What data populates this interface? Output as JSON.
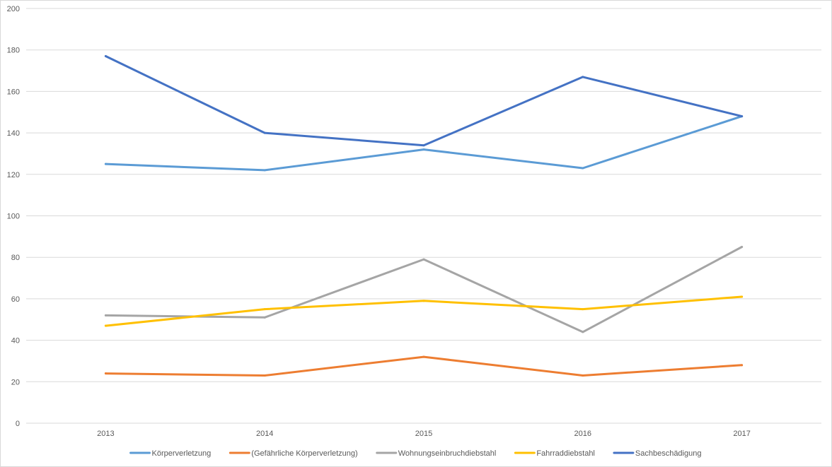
{
  "chart_data": {
    "type": "line",
    "title": "",
    "xlabel": "",
    "ylabel": "",
    "ylim": [
      0,
      200
    ],
    "yticks": [
      "0",
      "20",
      "40",
      "60",
      "80",
      "100",
      "120",
      "140",
      "160",
      "180",
      "200"
    ],
    "categories": [
      "2013",
      "2014",
      "2015",
      "2016",
      "2017"
    ],
    "grid": true,
    "legend_position": "bottom",
    "series": [
      {
        "name": "Körperverletzung",
        "color": "#5B9BD5",
        "values": [
          125,
          122,
          132,
          123,
          148
        ]
      },
      {
        "name": "(Gefährliche Körperverletzung)",
        "color": "#ED7D31",
        "values": [
          24,
          23,
          32,
          23,
          28
        ]
      },
      {
        "name": "Wohnungseinbruchdiebstahl",
        "color": "#A5A5A5",
        "values": [
          52,
          51,
          79,
          44,
          85
        ]
      },
      {
        "name": "Fahrraddiebstahl",
        "color": "#FFC000",
        "values": [
          47,
          55,
          59,
          55,
          61
        ]
      },
      {
        "name": "Sachbeschädigung",
        "color": "#4472C4",
        "values": [
          177,
          140,
          134,
          167,
          148
        ]
      }
    ]
  }
}
